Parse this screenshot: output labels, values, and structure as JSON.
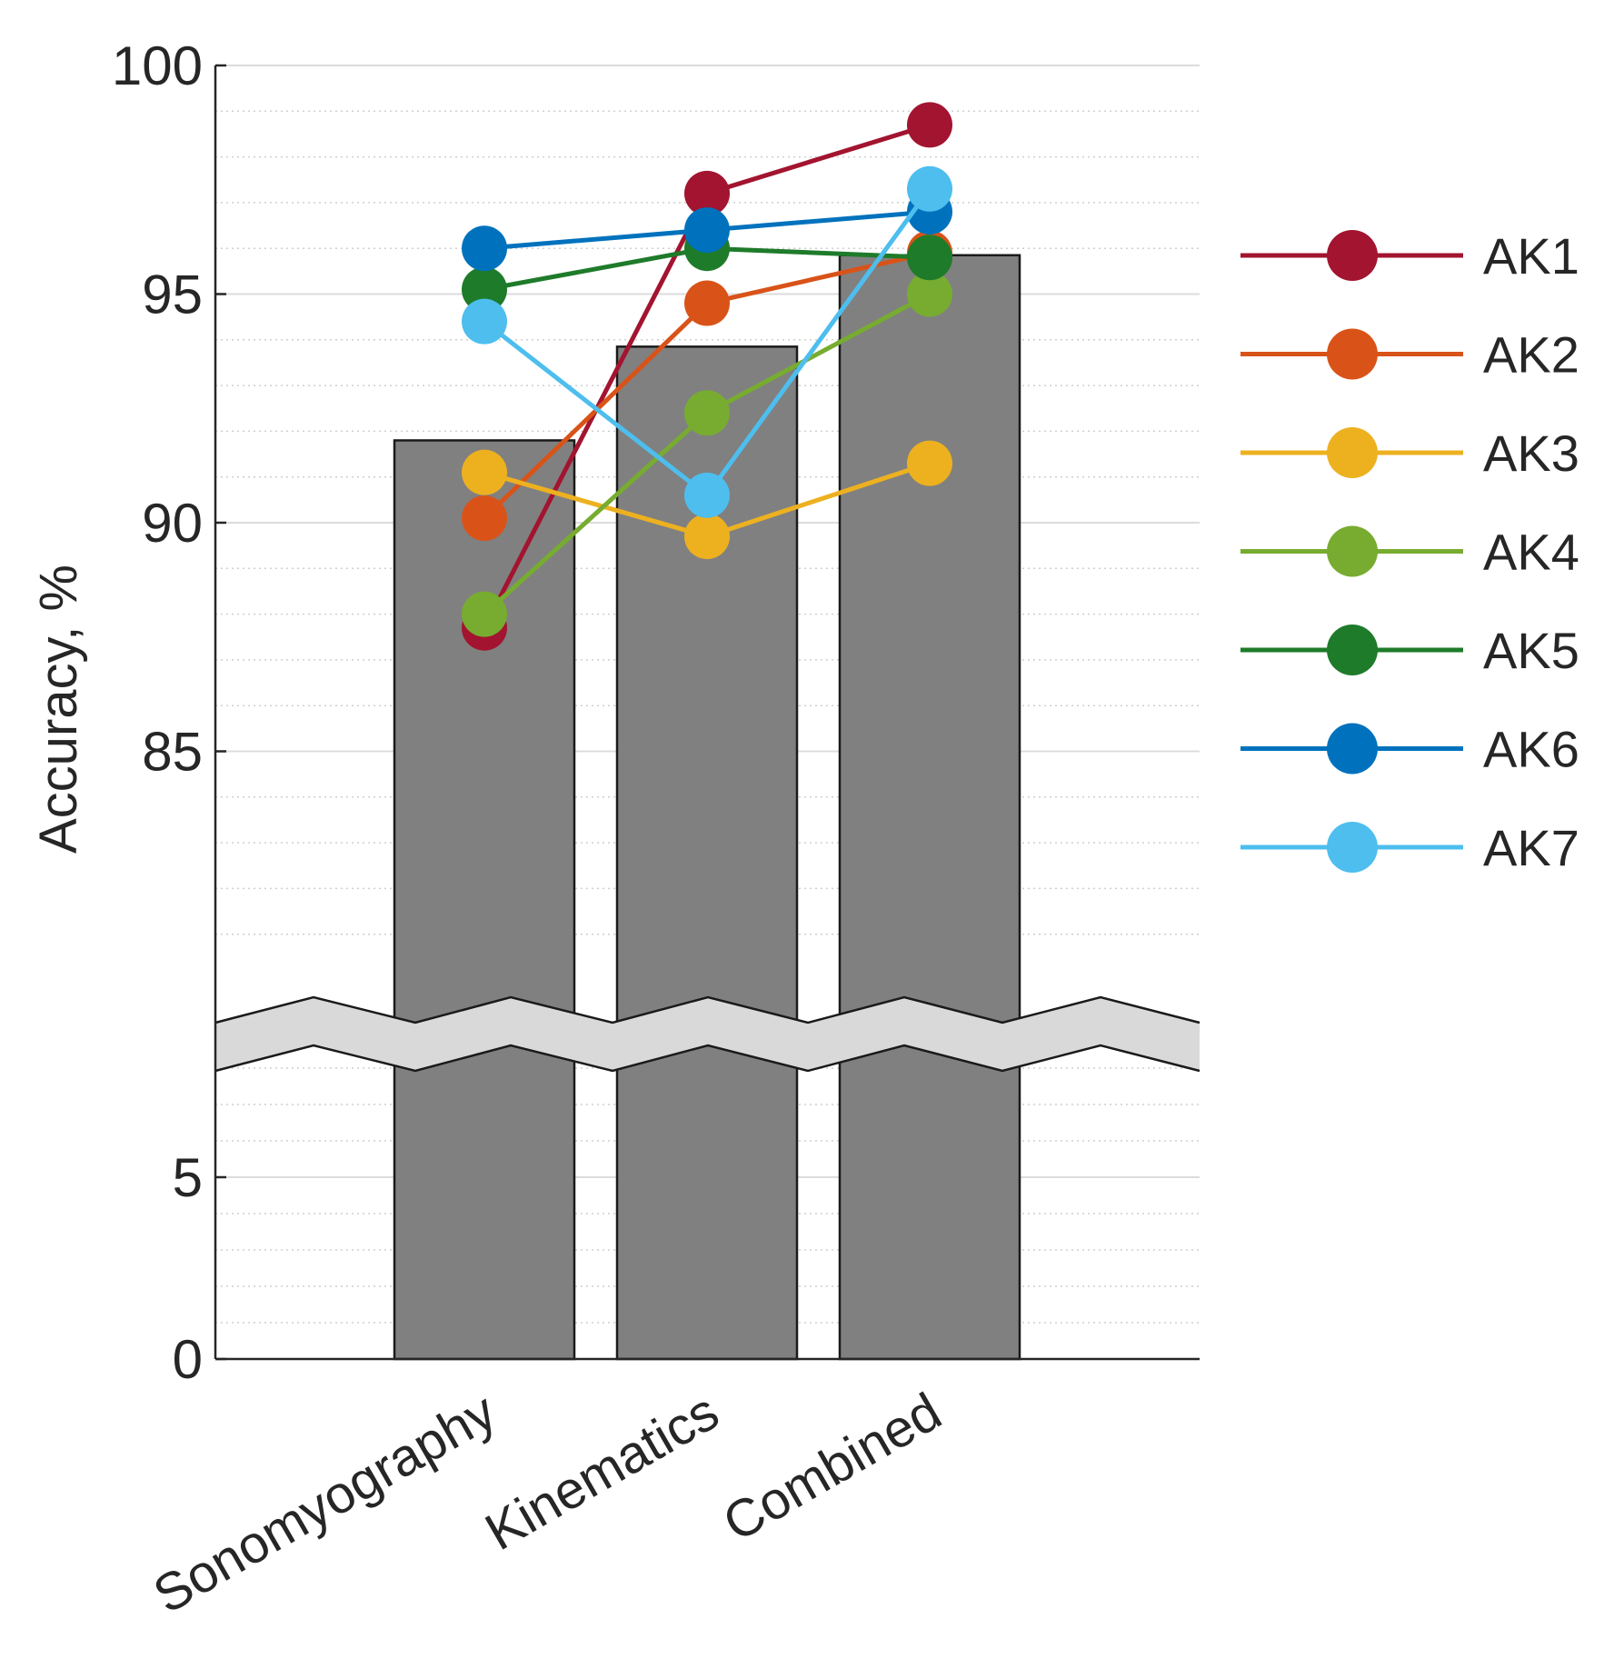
{
  "chart_data": {
    "type": "bar",
    "ylabel": "Accuracy, %",
    "categories": [
      "Sonomyography",
      "Kinematics",
      "Combined"
    ],
    "bar_values": [
      91.8,
      93.85,
      95.85
    ],
    "bar_color": "#808080",
    "axis_break": {
      "lower_range": [
        0,
        10
      ],
      "upper_range": [
        80,
        100
      ]
    },
    "upper_ticks": [
      {
        "value": 85,
        "label": "85"
      },
      {
        "value": 90,
        "label": "90"
      },
      {
        "value": 95,
        "label": "95"
      },
      {
        "value": 100,
        "label": "100"
      }
    ],
    "lower_ticks": [
      {
        "value": 0,
        "label": "0"
      },
      {
        "value": 5,
        "label": "5"
      }
    ],
    "series": [
      {
        "name": "AK1",
        "color": "#A2142F",
        "values": [
          87.7,
          97.2,
          98.7
        ]
      },
      {
        "name": "AK2",
        "color": "#D95319",
        "values": [
          90.1,
          94.8,
          95.9
        ]
      },
      {
        "name": "AK3",
        "color": "#EDB120",
        "values": [
          91.1,
          89.7,
          91.3
        ]
      },
      {
        "name": "AK4",
        "color": "#77AC30",
        "values": [
          88.0,
          92.4,
          95.0
        ]
      },
      {
        "name": "AK5",
        "color": "#1E7B2A",
        "values": [
          95.1,
          96.0,
          95.8
        ]
      },
      {
        "name": "AK6",
        "color": "#0072BD",
        "values": [
          96.0,
          96.4,
          96.8
        ]
      },
      {
        "name": "AK7",
        "color": "#4DBEEE",
        "values": [
          94.4,
          90.6,
          97.3
        ]
      }
    ],
    "legend_position": "right",
    "grid": true
  }
}
